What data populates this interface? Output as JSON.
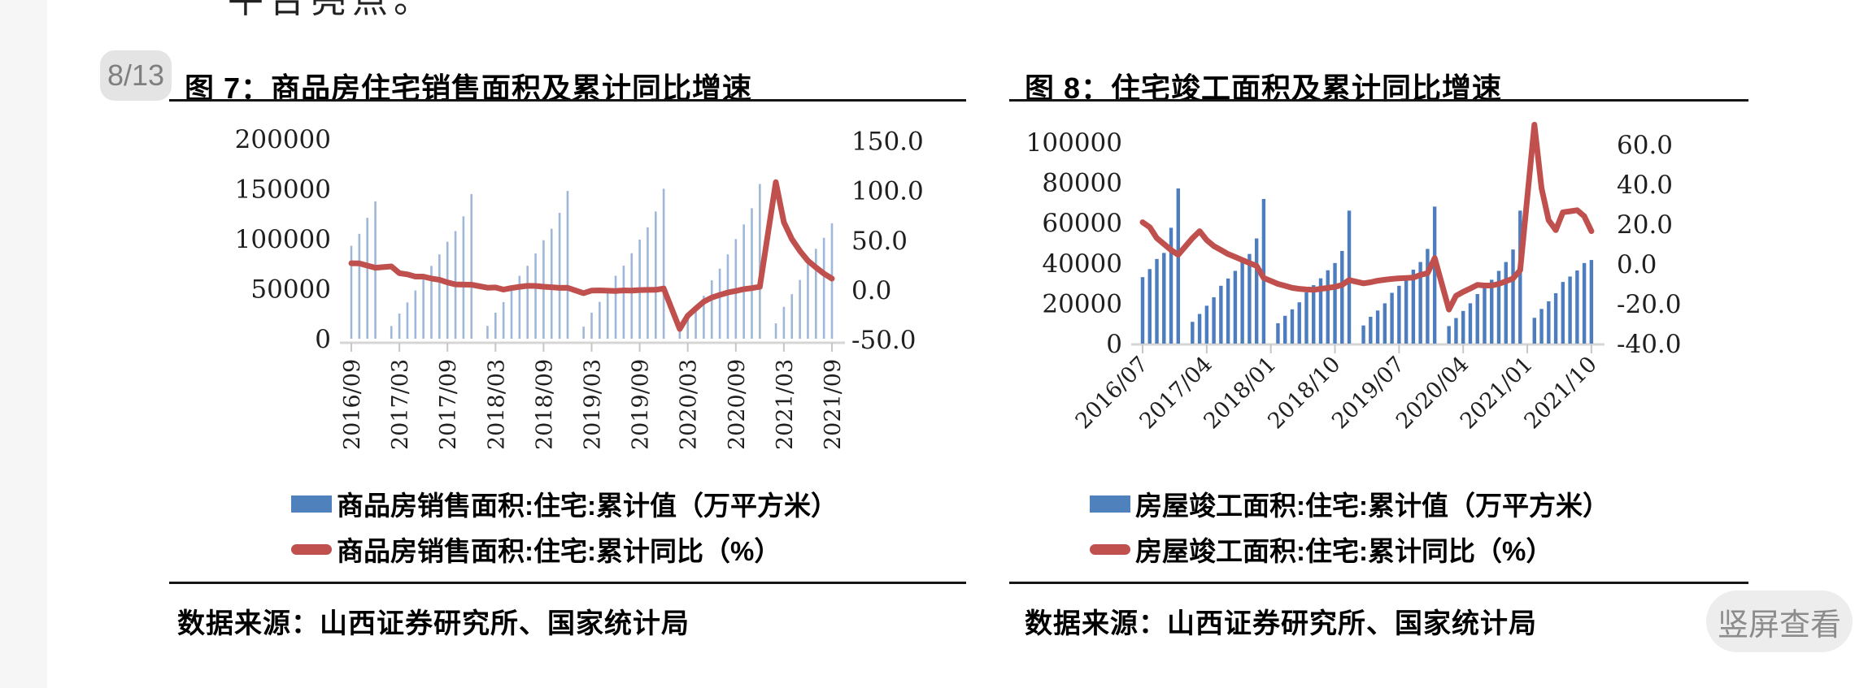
{
  "page": {
    "top_clipped_text": "平台亮点。",
    "badge": "8/13",
    "view_button": "竖屏查看"
  },
  "figures": [
    {
      "title": "图 7：商品房住宅销售面积及累计同比增速",
      "source": "数据来源：山西证券研究所、国家统计局",
      "legend": [
        {
          "label": "商品房销售面积:住宅:累计值（万平方米）",
          "swatch": "bar"
        },
        {
          "label": "商品房销售面积:住宅:累计同比（%）",
          "swatch": "line"
        }
      ],
      "chart_data": {
        "type": "combo-bar-line",
        "bar_color": "#9fb8d9",
        "line_color": "#c0504d",
        "legend_bar_color": "#4f81bd",
        "months": [
          "2016/09",
          "2016/10",
          "2016/11",
          "2016/12",
          "2017/01",
          "2017/02",
          "2017/03",
          "2017/04",
          "2017/05",
          "2017/06",
          "2017/07",
          "2017/08",
          "2017/09",
          "2017/10",
          "2017/11",
          "2017/12",
          "2018/01",
          "2018/02",
          "2018/03",
          "2018/04",
          "2018/05",
          "2018/06",
          "2018/07",
          "2018/08",
          "2018/09",
          "2018/10",
          "2018/11",
          "2018/12",
          "2019/01",
          "2019/02",
          "2019/03",
          "2019/04",
          "2019/05",
          "2019/06",
          "2019/07",
          "2019/08",
          "2019/09",
          "2019/10",
          "2019/11",
          "2019/12",
          "2020/01",
          "2020/02",
          "2020/03",
          "2020/04",
          "2020/05",
          "2020/06",
          "2020/07",
          "2020/08",
          "2020/09",
          "2020/10",
          "2020/11",
          "2020/12",
          "2021/01",
          "2021/02",
          "2021/03",
          "2021/04",
          "2021/05",
          "2021/06",
          "2021/07",
          "2021/08",
          "2021/09"
        ],
        "bar_series": {
          "name": "商品房销售面积:住宅:累计值（万平方米）",
          "values": [
            93000,
            105000,
            121000,
            137500,
            null,
            12700,
            25200,
            36300,
            48300,
            62700,
            72900,
            84400,
            97000,
            107700,
            122500,
            144800,
            null,
            12800,
            26100,
            36700,
            49000,
            63000,
            73000,
            85300,
            98600,
            110000,
            126000,
            147900,
            null,
            12100,
            26100,
            36900,
            49000,
            63000,
            73200,
            85600,
            99200,
            111500,
            127300,
            150100,
            null,
            7400,
            19500,
            30000,
            43000,
            58400,
            70100,
            84400,
            99800,
            114400,
            130600,
            154900,
            null,
            15400,
            31900,
            44600,
            58800,
            78500,
            90000,
            101000,
            115500
          ]
        },
        "line_series": {
          "name": "商品房销售面积:住宅:累计同比（%）",
          "values": [
            26.9,
            26.8,
            24.5,
            22.4,
            null,
            23.7,
            16.9,
            15.7,
            13.5,
            13.5,
            11.5,
            10.3,
            7.6,
            5.6,
            5.4,
            5.3,
            null,
            2.3,
            2.5,
            0.4,
            2.0,
            3.2,
            4.2,
            4.1,
            3.3,
            2.8,
            2.1,
            2.2,
            null,
            -3.2,
            -0.6,
            -0.4,
            -0.7,
            -1.0,
            -0.4,
            -0.6,
            -0.1,
            0.1,
            0.2,
            1.5,
            null,
            -39.2,
            -25.9,
            -18.7,
            -11.8,
            -7.6,
            -5.0,
            -2.5,
            -1.0,
            0.8,
            1.9,
            3.2,
            null,
            108.4,
            68.1,
            51.1,
            39.3,
            29.4,
            22.7,
            16.5,
            11.4
          ]
        },
        "left_axis": {
          "ticks": [
            "0",
            "50000",
            "100000",
            "150000",
            "200000"
          ],
          "min": 0,
          "max": 200000
        },
        "right_axis": {
          "ticks": [
            "150.0",
            "100.0",
            "50.0",
            "0.0",
            "-50.0"
          ],
          "min": -50,
          "max": 150
        },
        "x_tick_labels": [
          "2016/09",
          "2017/03",
          "2017/09",
          "2018/03",
          "2018/09",
          "2019/03",
          "2019/09",
          "2020/03",
          "2020/09",
          "2021/03",
          "2021/09"
        ],
        "x_label_every": 6,
        "x_label_rotation": -90,
        "grid": "off",
        "legend_position": "bottom"
      }
    },
    {
      "title": "图 8：住宅竣工面积及累计同比增速",
      "source": "数据来源：山西证券研究所、国家统计局",
      "legend": [
        {
          "label": "房屋竣工面积:住宅:累计值（万平方米）",
          "swatch": "bar"
        },
        {
          "label": "房屋竣工面积:住宅:累计同比（%）",
          "swatch": "line"
        }
      ],
      "chart_data": {
        "type": "combo-bar-line",
        "bar_color": "#4d7dbf",
        "line_color": "#c0504d",
        "legend_bar_color": "#4f81bd",
        "months": [
          "2016/07",
          "2016/08",
          "2016/09",
          "2016/10",
          "2016/11",
          "2016/12",
          "2017/01",
          "2017/02",
          "2017/03",
          "2017/04",
          "2017/05",
          "2017/06",
          "2017/07",
          "2017/08",
          "2017/09",
          "2017/10",
          "2017/11",
          "2017/12",
          "2018/01",
          "2018/02",
          "2018/03",
          "2018/04",
          "2018/05",
          "2018/06",
          "2018/07",
          "2018/08",
          "2018/09",
          "2018/10",
          "2018/11",
          "2018/12",
          "2019/01",
          "2019/02",
          "2019/03",
          "2019/04",
          "2019/05",
          "2019/06",
          "2019/07",
          "2019/08",
          "2019/09",
          "2019/10",
          "2019/11",
          "2019/12",
          "2020/01",
          "2020/02",
          "2020/03",
          "2020/04",
          "2020/05",
          "2020/06",
          "2020/07",
          "2020/08",
          "2020/09",
          "2020/10",
          "2020/11",
          "2020/12",
          "2021/01",
          "2021/02",
          "2021/03",
          "2021/04",
          "2021/05",
          "2021/06",
          "2021/07",
          "2021/08",
          "2021/09",
          "2021/10"
        ],
        "bar_series": {
          "name": "房屋竣工面积:住宅:累计值（万平方米）",
          "values": [
            33000,
            37000,
            42000,
            45000,
            57500,
            77000,
            null,
            10800,
            14700,
            18800,
            23000,
            28700,
            32300,
            36100,
            40600,
            44500,
            52200,
            71800,
            null,
            10100,
            13800,
            17000,
            20500,
            25400,
            29000,
            32400,
            36400,
            40000,
            46000,
            66000,
            null,
            9000,
            13300,
            16400,
            20000,
            25200,
            28700,
            32200,
            36700,
            40500,
            47000,
            68000,
            null,
            8700,
            12700,
            16200,
            20000,
            24600,
            27900,
            31700,
            36100,
            40500,
            46700,
            66000,
            null,
            12800,
            17200,
            21000,
            25000,
            30600,
            33300,
            36300,
            40000,
            41500
          ]
        },
        "line_series": {
          "name": "房屋竣工面积:住宅:累计同比（%）",
          "values": [
            21.0,
            18.5,
            13.0,
            10.0,
            7.0,
            4.6,
            null,
            13.0,
            16.5,
            12.0,
            9.0,
            7.0,
            5.0,
            3.5,
            2.0,
            0.5,
            -1.0,
            -7.0,
            null,
            -10.0,
            -11.0,
            -12.0,
            -12.5,
            -12.8,
            -13.0,
            -12.5,
            -12.0,
            -11.5,
            -10.5,
            -8.1,
            null,
            -9.7,
            -9.2,
            -8.4,
            -7.9,
            -7.5,
            -7.2,
            -7.0,
            -6.8,
            -5.5,
            -4.6,
            3.0,
            null,
            -22.9,
            -16.0,
            -14.0,
            -12.3,
            -10.5,
            -10.8,
            -10.8,
            -10.0,
            -8.7,
            -7.3,
            -3.1,
            null,
            70.0,
            38.0,
            22.0,
            17.0,
            26.0,
            26.5,
            27.0,
            24.0,
            16.5
          ]
        },
        "left_axis": {
          "ticks": [
            "0",
            "20000",
            "40000",
            "60000",
            "80000",
            "100000"
          ],
          "min": 0,
          "max": 100000
        },
        "right_axis": {
          "ticks": [
            "60.0",
            "40.0",
            "20.0",
            "0.0",
            "-20.0",
            "-40.0"
          ],
          "min": -40,
          "max": 60
        },
        "x_tick_labels": [
          "2016/07",
          "2017/04",
          "2018/01",
          "2018/10",
          "2019/07",
          "2020/04",
          "2021/01",
          "2021/10"
        ],
        "x_label_every": 9,
        "x_label_rotation": -45,
        "grid": "off",
        "legend_position": "bottom"
      }
    }
  ]
}
